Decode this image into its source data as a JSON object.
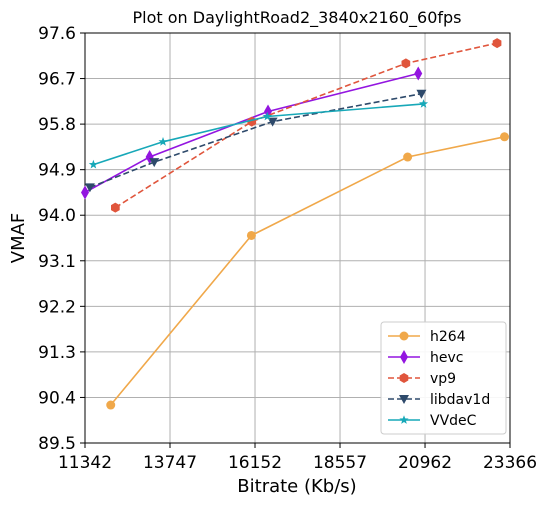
{
  "chart_data": {
    "type": "line",
    "title": "Plot on DaylightRoad2_3840x2160_60fps",
    "xlabel": "Bitrate (Kb/s)",
    "ylabel": "VMAF",
    "xlim": [
      11342,
      23366
    ],
    "ylim": [
      89.5,
      97.6
    ],
    "xticks": [
      11342,
      13747,
      16152,
      18557,
      20962,
      23366
    ],
    "xtick_labels": [
      "11342",
      "13747",
      "16152",
      "18557",
      "20962",
      "23366"
    ],
    "yticks": [
      89.5,
      90.4,
      91.3,
      92.2,
      93.1,
      94.0,
      94.9,
      95.8,
      96.7,
      97.6
    ],
    "ytick_labels": [
      "89.5",
      "90.4",
      "91.3",
      "92.2",
      "93.1",
      "94.0",
      "94.9",
      "95.8",
      "96.7",
      "97.6"
    ],
    "grid": true,
    "legend_position": "bottom-right",
    "series": [
      {
        "name": "h264",
        "color": "#f0a84a",
        "marker": "circle",
        "dash": "solid",
        "x": [
          12070,
          16050,
          20470,
          23210
        ],
        "y": [
          90.25,
          93.6,
          95.15,
          95.55
        ]
      },
      {
        "name": "hevc",
        "color": "#9315e0",
        "marker": "diamond",
        "dash": "solid",
        "x": [
          11342,
          13170,
          16520,
          20770
        ],
        "y": [
          94.45,
          95.15,
          96.05,
          96.8
        ]
      },
      {
        "name": "vp9",
        "color": "#e0553c",
        "marker": "hexagon",
        "dash": "dashed",
        "x": [
          12200,
          16060,
          20420,
          23000
        ],
        "y": [
          94.15,
          95.85,
          97.0,
          97.4
        ]
      },
      {
        "name": "libdav1d",
        "color": "#2e4a6b",
        "marker": "triangle-down",
        "dash": "dashed",
        "x": [
          11480,
          13300,
          16650,
          20860
        ],
        "y": [
          94.55,
          95.05,
          95.85,
          96.4
        ]
      },
      {
        "name": "VVdeC",
        "color": "#17a8b8",
        "marker": "star",
        "dash": "solid",
        "x": [
          11580,
          13550,
          16500,
          20920
        ],
        "y": [
          95.0,
          95.45,
          95.95,
          96.2
        ]
      }
    ]
  }
}
